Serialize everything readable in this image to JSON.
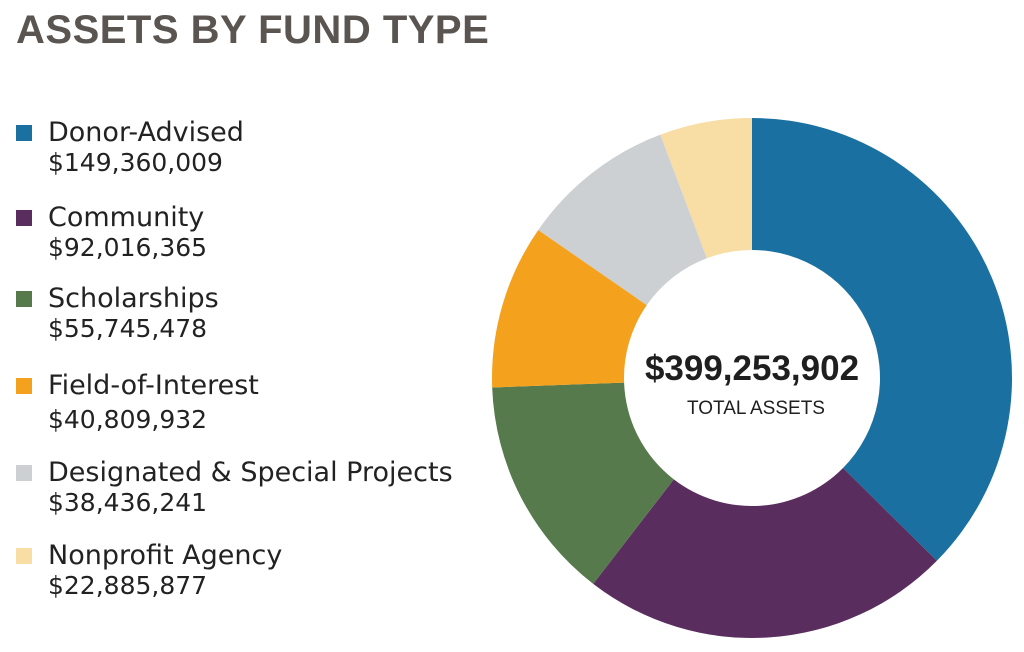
{
  "title": "ASSETS BY FUND TYPE",
  "colors": {
    "title": "#5a5551",
    "donor_advised": "#1a70a0",
    "community": "#5a2d5f",
    "scholarships": "#567a4c",
    "field_of_interest": "#f4a11e",
    "designated": "#cdd0d2",
    "nonprofit_agency": "#f8dda4"
  },
  "center": {
    "total": "$399,253,902",
    "label": "TOTAL ASSETS"
  },
  "legend": [
    {
      "label": "Donor-Advised",
      "value": "$149,360,009"
    },
    {
      "label": "Community",
      "value": "$92,016,365"
    },
    {
      "label": "Scholarships",
      "value": "$55,745,478"
    },
    {
      "label": "Field-of-Interest",
      "value": "$40,809,932"
    },
    {
      "label": "Designated & Special Projects",
      "value": "$38,436,241"
    },
    {
      "label": "Nonprofit Agency",
      "value": "$22,885,877"
    }
  ],
  "chart_data": {
    "type": "pie",
    "title": "ASSETS BY FUND TYPE",
    "donut": true,
    "center_text": "$399,253,902",
    "center_subtext": "TOTAL ASSETS",
    "legend_placement": "left",
    "series": [
      {
        "name": "Donor-Advised",
        "value": 149360009,
        "color": "#1a70a0"
      },
      {
        "name": "Community",
        "value": 92016365,
        "color": "#5a2d5f"
      },
      {
        "name": "Scholarships",
        "value": 55745478,
        "color": "#567a4c"
      },
      {
        "name": "Field-of-Interest",
        "value": 40809932,
        "color": "#f4a11e"
      },
      {
        "name": "Designated & Special Projects",
        "value": 38436241,
        "color": "#cdd0d2"
      },
      {
        "name": "Nonprofit Agency",
        "value": 22885877,
        "color": "#f8dda4"
      }
    ]
  }
}
